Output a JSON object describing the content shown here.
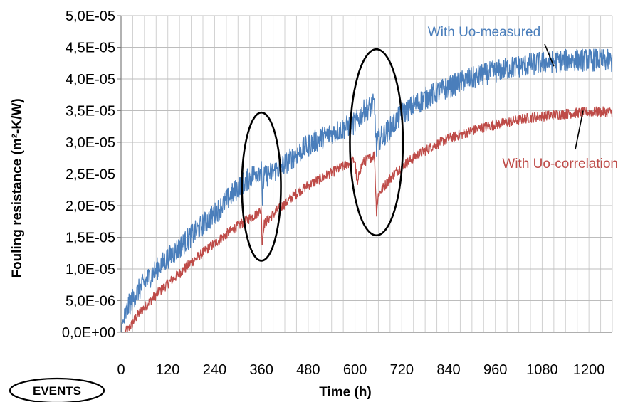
{
  "chart_data": {
    "type": "line",
    "xlabel": "Time (h)",
    "ylabel": "Fouling resistance (m²-K/W)",
    "xlim": [
      0,
      1260
    ],
    "ylim": [
      0,
      5e-05
    ],
    "x_ticks": [
      0,
      120,
      240,
      360,
      480,
      600,
      720,
      840,
      960,
      1080,
      1200
    ],
    "x_tick_labels": [
      "0",
      "120",
      "240",
      "360",
      "480",
      "600",
      "720",
      "840",
      "960",
      "1080",
      "1200"
    ],
    "y_ticks": [
      0,
      5e-06,
      1e-05,
      1.5e-05,
      2e-05,
      2.5e-05,
      3e-05,
      3.5e-05,
      4e-05,
      4.5e-05,
      5e-05
    ],
    "y_tick_labels": [
      "0,0E+00",
      "5,0E-06",
      "1,0E-05",
      "1,5E-05",
      "2,0E-05",
      "2,5E-05",
      "3,0E-05",
      "3,5E-05",
      "4,0E-05",
      "4,5E-05",
      "5,0E-05"
    ],
    "grid": true,
    "series": [
      {
        "name": "With Uo-measured",
        "color": "#4a7ebb",
        "x": [
          0,
          10,
          20,
          40,
          60,
          80,
          100,
          120,
          150,
          180,
          210,
          240,
          270,
          300,
          330,
          350,
          360,
          362,
          366,
          380,
          400,
          420,
          440,
          460,
          480,
          510,
          540,
          570,
          600,
          610,
          620,
          640,
          650,
          655,
          658,
          662,
          680,
          700,
          720,
          760,
          800,
          840,
          880,
          920,
          960,
          1000,
          1040,
          1080,
          1120,
          1160,
          1200,
          1230,
          1260
        ],
        "values": [
          0.0,
          2.5e-06,
          4.2e-06,
          6.2e-06,
          7.8e-06,
          9.2e-06,
          1.05e-05,
          1.17e-05,
          1.34e-05,
          1.52e-05,
          1.7e-05,
          1.87e-05,
          2.08e-05,
          2.28e-05,
          2.44e-05,
          2.54e-05,
          2.6e-05,
          2.05e-05,
          2.44e-05,
          2.5e-05,
          2.57e-05,
          2.66e-05,
          2.76e-05,
          2.86e-05,
          2.95e-05,
          3.06e-05,
          3.14e-05,
          3.22e-05,
          3.3e-05,
          3.38e-05,
          3.48e-05,
          3.56e-05,
          3.6e-05,
          2.88e-05,
          3e-05,
          3.05e-05,
          3.15e-05,
          3.3e-05,
          3.44e-05,
          3.62e-05,
          3.76e-05,
          3.87e-05,
          3.97e-05,
          4.05e-05,
          4.12e-05,
          4.18e-05,
          4.22e-05,
          4.26e-05,
          4.28e-05,
          4.3e-05,
          4.3e-05,
          4.3e-05,
          4.28e-05
        ]
      },
      {
        "name": "With Uo-correlation",
        "color": "#be4b48",
        "x": [
          0,
          10,
          20,
          40,
          60,
          80,
          100,
          120,
          150,
          180,
          210,
          240,
          270,
          300,
          330,
          350,
          360,
          362,
          366,
          380,
          400,
          420,
          440,
          460,
          480,
          510,
          540,
          570,
          590,
          600,
          606,
          612,
          620,
          640,
          650,
          655,
          660,
          680,
          700,
          720,
          760,
          800,
          840,
          880,
          920,
          960,
          1000,
          1040,
          1080,
          1120,
          1160,
          1200,
          1230,
          1260
        ],
        "values": [
          0.0,
          0.0,
          5e-07,
          2.5e-06,
          4e-06,
          5.3e-06,
          6.5e-06,
          7.7e-06,
          9.3e-06,
          1.1e-05,
          1.26e-05,
          1.4e-05,
          1.55e-05,
          1.68e-05,
          1.8e-05,
          1.88e-05,
          1.94e-05,
          1.35e-05,
          1.7e-05,
          1.8e-05,
          1.92e-05,
          2.03e-05,
          2.14e-05,
          2.24e-05,
          2.32e-05,
          2.42e-05,
          2.52e-05,
          2.62e-05,
          2.69e-05,
          2.72e-05,
          2.3e-05,
          2.55e-05,
          2.68e-05,
          2.76e-05,
          2.8e-05,
          1.9e-05,
          2.18e-05,
          2.35e-05,
          2.5e-05,
          2.62e-05,
          2.8e-05,
          2.94e-05,
          3.06e-05,
          3.14e-05,
          3.22e-05,
          3.28e-05,
          3.33e-05,
          3.38e-05,
          3.41e-05,
          3.44e-05,
          3.46e-05,
          3.48e-05,
          3.48e-05,
          3.48e-05
        ]
      }
    ],
    "annotations": [
      {
        "text": "With Uo-measured",
        "color": "#4a7ebb",
        "points_to_x": 1110,
        "points_to_y": 4.2e-05
      },
      {
        "text": "With Uo-correlation",
        "color": "#be4b48",
        "points_to_x": 1185,
        "points_to_y": 3.5e-05
      }
    ],
    "ellipses": [
      {
        "cx": 360,
        "cy": 2.3e-05,
        "rx": 50,
        "ry": 1.17e-05
      },
      {
        "cx": 655,
        "cy": 3e-05,
        "rx": 68,
        "ry": 1.47e-05
      }
    ],
    "noise": {
      "with_uo_measured": 1.8e-06,
      "with_uo_correlation": 8e-07
    }
  },
  "events_label": "EVENTS"
}
